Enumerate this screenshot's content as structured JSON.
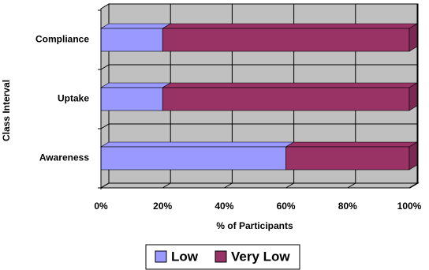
{
  "chart_data": {
    "type": "bar3d_stacked_horizontal",
    "categories": [
      "Compliance",
      "Uptake",
      "Awareness"
    ],
    "series": [
      {
        "name": "Low",
        "color": "#9999ff",
        "values": [
          20,
          20,
          60
        ]
      },
      {
        "name": "Very Low",
        "color": "#993366",
        "values": [
          80,
          80,
          40
        ]
      }
    ],
    "xlim": [
      0,
      100
    ],
    "xticks": [
      {
        "value": 0,
        "label": "0%"
      },
      {
        "value": 20,
        "label": "20%"
      },
      {
        "value": 40,
        "label": "40%"
      },
      {
        "value": 60,
        "label": "60%"
      },
      {
        "value": 80,
        "label": "80%"
      },
      {
        "value": 100,
        "label": "100%"
      }
    ],
    "x_label": "% of Participants",
    "y_label": "Class Interval",
    "grid": true,
    "legend": "bottom"
  }
}
